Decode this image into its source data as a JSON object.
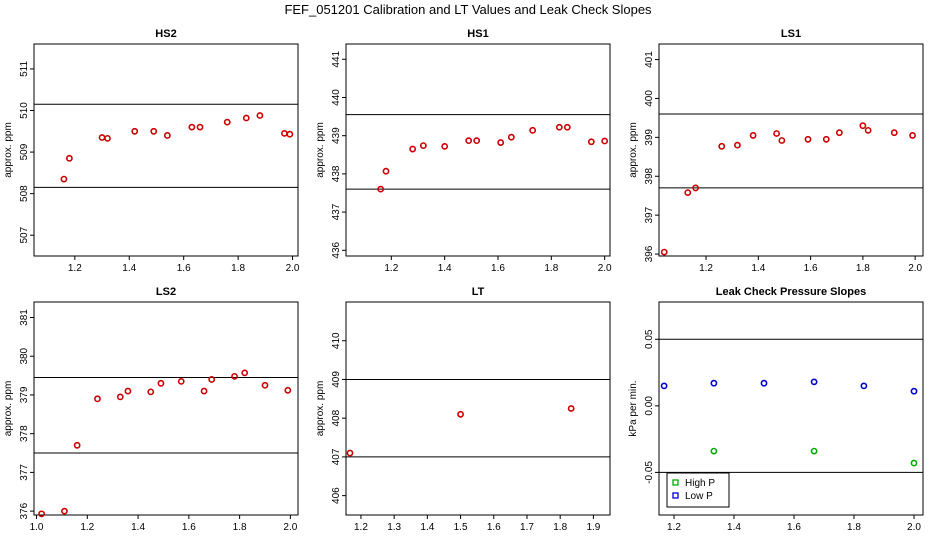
{
  "title": "FEF_051201  Calibration and LT Values and Leak Check Slopes",
  "chart_data": [
    {
      "type": "scatter",
      "title": "HS2",
      "ylabel": "approx. ppm",
      "xlim": [
        1.05,
        2.02
      ],
      "ylim": [
        506.5,
        511.6
      ],
      "xticks": [
        1.2,
        1.4,
        1.6,
        1.8,
        2.0
      ],
      "xtick_labels": [
        "1.2",
        "1.4",
        "1.6",
        "1.8",
        "2.0"
      ],
      "yticks": [
        507,
        508,
        509,
        510,
        511
      ],
      "ytick_labels": [
        "507",
        "508",
        "509",
        "510",
        "511"
      ],
      "hlines": [
        508.15,
        510.15
      ],
      "series": [
        {
          "name": "values",
          "color": "#cc0000",
          "marker": "circle",
          "x": [
            1.16,
            1.18,
            1.3,
            1.32,
            1.42,
            1.49,
            1.54,
            1.63,
            1.66,
            1.76,
            1.83,
            1.88,
            1.97,
            1.99
          ],
          "y": [
            508.35,
            508.85,
            509.35,
            509.33,
            509.5,
            509.5,
            509.4,
            509.6,
            509.6,
            509.72,
            509.82,
            509.88,
            509.45,
            509.43
          ]
        }
      ]
    },
    {
      "type": "scatter",
      "title": "HS1",
      "ylabel": "approx. ppm",
      "xlim": [
        1.03,
        2.02
      ],
      "ylim": [
        435.85,
        441.4
      ],
      "xticks": [
        1.2,
        1.4,
        1.6,
        1.8,
        2.0
      ],
      "xtick_labels": [
        "1.2",
        "1.4",
        "1.6",
        "1.8",
        "2.0"
      ],
      "yticks": [
        436,
        437,
        438,
        439,
        440,
        441
      ],
      "ytick_labels": [
        "436",
        "437",
        "438",
        "439",
        "440",
        "441"
      ],
      "hlines": [
        437.6,
        439.55
      ],
      "series": [
        {
          "name": "values",
          "color": "#cc0000",
          "marker": "circle",
          "x": [
            1.16,
            1.18,
            1.28,
            1.32,
            1.4,
            1.49,
            1.52,
            1.61,
            1.65,
            1.73,
            1.83,
            1.86,
            1.95,
            2.0
          ],
          "y": [
            437.6,
            438.07,
            438.65,
            438.74,
            438.72,
            438.87,
            438.87,
            438.82,
            438.96,
            439.14,
            439.22,
            439.22,
            438.84,
            438.86
          ]
        }
      ]
    },
    {
      "type": "scatter",
      "title": "LS1",
      "ylabel": "approx. ppm",
      "xlim": [
        1.02,
        2.03
      ],
      "ylim": [
        395.95,
        401.4
      ],
      "xticks": [
        1.2,
        1.4,
        1.6,
        1.8,
        2.0
      ],
      "xtick_labels": [
        "1.2",
        "1.4",
        "1.6",
        "1.8",
        "2.0"
      ],
      "yticks": [
        396,
        397,
        398,
        399,
        400,
        401
      ],
      "ytick_labels": [
        "396",
        "397",
        "398",
        "399",
        "400",
        "401"
      ],
      "hlines": [
        397.7,
        399.6
      ],
      "series": [
        {
          "name": "values",
          "color": "#cc0000",
          "marker": "circle",
          "x": [
            1.04,
            1.13,
            1.16,
            1.26,
            1.32,
            1.38,
            1.47,
            1.49,
            1.59,
            1.66,
            1.71,
            1.8,
            1.82,
            1.92,
            1.99
          ],
          "y": [
            396.05,
            397.58,
            397.7,
            398.77,
            398.8,
            399.05,
            399.1,
            398.92,
            398.95,
            398.95,
            399.12,
            399.3,
            399.18,
            399.12,
            399.05
          ]
        }
      ]
    },
    {
      "type": "scatter",
      "title": "LS2",
      "ylabel": "approx. ppm",
      "xlim": [
        0.99,
        2.03
      ],
      "ylim": [
        375.9,
        381.4
      ],
      "xticks": [
        1.0,
        1.2,
        1.4,
        1.6,
        1.8,
        2.0
      ],
      "xtick_labels": [
        "1.0",
        "1.2",
        "1.4",
        "1.6",
        "1.8",
        "2.0"
      ],
      "yticks": [
        376,
        377,
        378,
        379,
        380,
        381
      ],
      "ytick_labels": [
        "376",
        "377",
        "378",
        "379",
        "380",
        "381"
      ],
      "hlines": [
        377.5,
        379.45
      ],
      "series": [
        {
          "name": "values",
          "color": "#cc0000",
          "marker": "circle",
          "x": [
            1.02,
            1.11,
            1.16,
            1.24,
            1.33,
            1.36,
            1.45,
            1.49,
            1.57,
            1.66,
            1.69,
            1.78,
            1.82,
            1.9,
            1.99
          ],
          "y": [
            375.93,
            376.0,
            377.7,
            378.9,
            378.95,
            379.1,
            379.08,
            379.3,
            379.35,
            379.1,
            379.4,
            379.48,
            379.57,
            379.25,
            379.12
          ]
        }
      ]
    },
    {
      "type": "scatter",
      "title": "LT",
      "ylabel": "approx. ppm",
      "xlim": [
        1.155,
        1.95
      ],
      "ylim": [
        405.5,
        411.0
      ],
      "xticks": [
        1.2,
        1.3,
        1.4,
        1.5,
        1.6,
        1.7,
        1.8,
        1.9
      ],
      "xtick_labels": [
        "1.2",
        "1.3",
        "1.4",
        "1.5",
        "1.6",
        "1.7",
        "1.8",
        "1.9"
      ],
      "yticks": [
        406,
        407,
        408,
        409,
        410
      ],
      "ytick_labels": [
        "406",
        "407",
        "408",
        "409",
        "410"
      ],
      "hlines": [
        407.0,
        409.0
      ],
      "series": [
        {
          "name": "values",
          "color": "#cc0000",
          "marker": "circle",
          "x": [
            1.167,
            1.5,
            1.833
          ],
          "y": [
            407.1,
            408.1,
            408.25
          ]
        }
      ]
    },
    {
      "type": "scatter",
      "title": "Leak Check Pressure Slopes",
      "ylabel": "kPa per min.",
      "xlim": [
        1.15,
        2.03
      ],
      "ylim": [
        -0.082,
        0.078
      ],
      "xticks": [
        1.2,
        1.4,
        1.6,
        1.8,
        2.0
      ],
      "xtick_labels": [
        "1.2",
        "1.4",
        "1.6",
        "1.8",
        "2.0"
      ],
      "yticks": [
        -0.05,
        0.0,
        0.05
      ],
      "ytick_labels": [
        "-0.05",
        "0.00",
        "0.05"
      ],
      "hlines": [
        -0.05,
        0.05
      ],
      "legend": {
        "position": "bottom-left",
        "entries": [
          "High P",
          "Low P"
        ]
      },
      "series": [
        {
          "name": "High P",
          "color": "#00aa00",
          "marker": "circle",
          "x": [
            1.333,
            1.667,
            2.0
          ],
          "y": [
            -0.034,
            -0.034,
            -0.043
          ]
        },
        {
          "name": "Low P",
          "color": "#0000cc",
          "marker": "circle",
          "x": [
            1.167,
            1.333,
            1.5,
            1.667,
            1.833,
            2.0
          ],
          "y": [
            0.015,
            0.017,
            0.017,
            0.018,
            0.015,
            0.011
          ]
        }
      ]
    }
  ]
}
